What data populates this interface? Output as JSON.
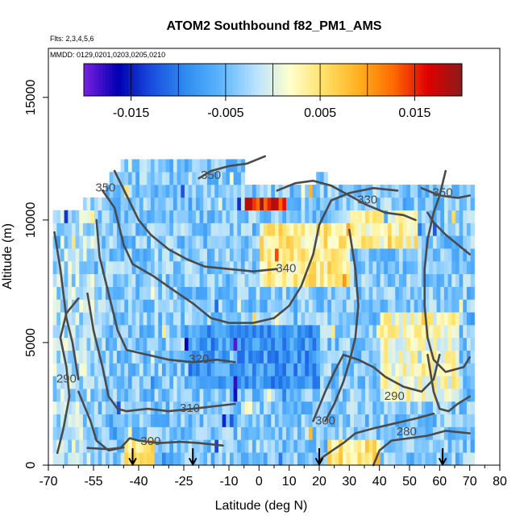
{
  "chart_data": {
    "type": "heatmap",
    "title": "ATOM2 Southbound f82_PM1_AMS",
    "notes": [
      "Flts: 2,3,4,5,6",
      "MMDD: 0129,0201,0203,0205,0210"
    ],
    "xlabel": "Latitude (deg N)",
    "ylabel": "Altitude (m)",
    "xlim": [
      -70,
      80
    ],
    "ylim": [
      0,
      17000
    ],
    "x_ticks": [
      -70,
      -55,
      -40,
      -25,
      -10,
      0,
      10,
      20,
      30,
      40,
      50,
      60,
      70,
      80
    ],
    "x_minor_ticks": [
      -65,
      -60,
      -50,
      -45,
      -35,
      -30,
      -20,
      -15,
      -5,
      5,
      15,
      25,
      35,
      45,
      55,
      65,
      75
    ],
    "y_ticks": [
      0,
      5000,
      10000,
      15000
    ],
    "colorbar": {
      "range": [
        -0.02,
        0.02
      ],
      "tick_values": [
        -0.015,
        -0.005,
        0.005,
        0.015
      ],
      "tick_labels": [
        "-0.015",
        "-0.005",
        "0.005",
        "0.015"
      ],
      "colors": [
        "#7b1fe0",
        "#0000b0",
        "#1a4fe0",
        "#2f8ff0",
        "#5eb6ff",
        "#b9e2ff",
        "#ffffcc",
        "#ffe066",
        "#ffb020",
        "#ff6a00",
        "#e00000",
        "#8b1a1a"
      ]
    },
    "contours": [
      {
        "label": "280",
        "label_at": [
          49,
          1350
        ]
      },
      {
        "label": "290",
        "label_at": [
          -64,
          3500
        ]
      },
      {
        "label": "290",
        "label_at": [
          45,
          2800
        ]
      },
      {
        "label": "300",
        "label_at": [
          -36,
          950
        ]
      },
      {
        "label": "300",
        "label_at": [
          22,
          1800
        ]
      },
      {
        "label": "310",
        "label_at": [
          -23,
          2300
        ]
      },
      {
        "label": "320",
        "label_at": [
          -20,
          4300
        ]
      },
      {
        "label": "330",
        "label_at": [
          36,
          10800
        ]
      },
      {
        "label": "340",
        "label_at": [
          9,
          8000
        ]
      },
      {
        "label": "350",
        "label_at": [
          -16,
          11800
        ]
      },
      {
        "label": "350",
        "label_at": [
          61,
          11100
        ]
      },
      {
        "label": "350",
        "label_at": [
          -51,
          11300
        ]
      }
    ],
    "flight_markers_lat": [
      -42,
      -22,
      20,
      61
    ]
  }
}
